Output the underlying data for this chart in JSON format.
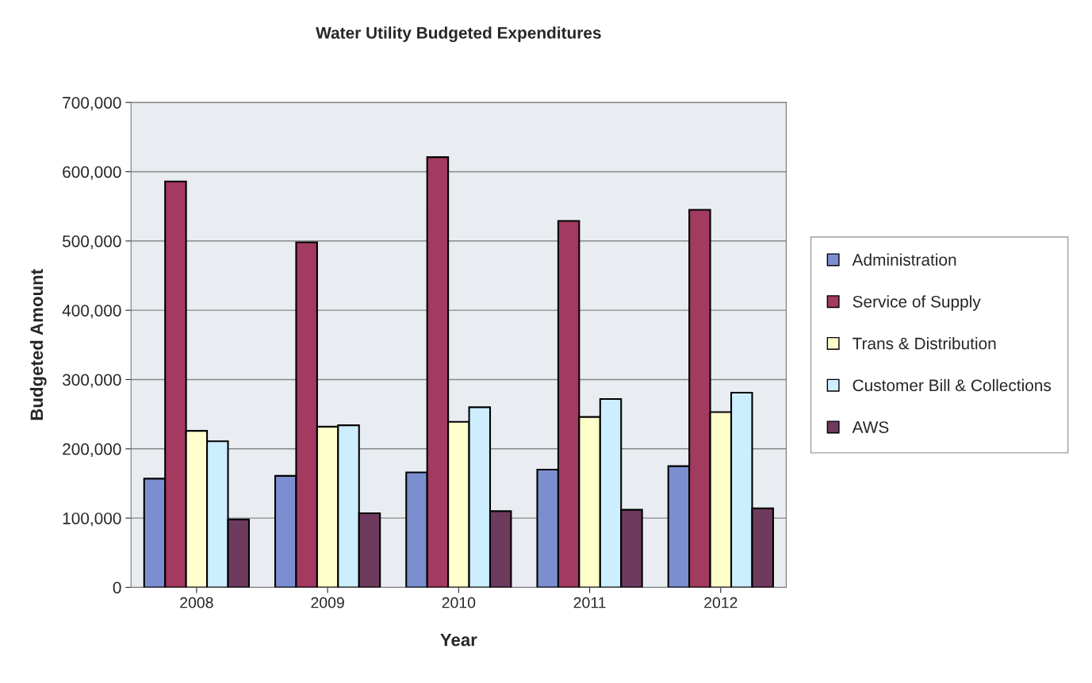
{
  "chart_data": {
    "type": "bar",
    "title": "Water Utility Budgeted Expenditures",
    "xlabel": "Year",
    "ylabel": "Budgeted Amount",
    "categories": [
      "2008",
      "2009",
      "2010",
      "2011",
      "2012"
    ],
    "series": [
      {
        "name": "Administration",
        "color": "#7b8fd0",
        "values": [
          157000,
          161000,
          166000,
          170000,
          175000
        ]
      },
      {
        "name": "Service of Supply",
        "color": "#a33a5f",
        "values": [
          586000,
          498000,
          621000,
          529000,
          545000
        ]
      },
      {
        "name": "Trans & Distribution",
        "color": "#ffffcc",
        "values": [
          226000,
          232000,
          239000,
          246000,
          253000
        ]
      },
      {
        "name": "Customer Bill & Collections",
        "color": "#cceeff",
        "values": [
          211000,
          234000,
          260000,
          272000,
          281000
        ]
      },
      {
        "name": "AWS",
        "color": "#6e3a5e",
        "values": [
          98000,
          107000,
          110000,
          112000,
          114000
        ]
      }
    ],
    "ylim": [
      0,
      700000
    ],
    "yticks": [
      {
        "value": 0,
        "label": "0"
      },
      {
        "value": 100000,
        "label": "100,000"
      },
      {
        "value": 200000,
        "label": "200,000"
      },
      {
        "value": 300000,
        "label": "300,000"
      },
      {
        "value": 400000,
        "label": "400,000"
      },
      {
        "value": 500000,
        "label": "500,000"
      },
      {
        "value": 600000,
        "label": "600,000"
      },
      {
        "value": 700000,
        "label": "700,000"
      }
    ],
    "grid": "y",
    "legend": "right"
  }
}
